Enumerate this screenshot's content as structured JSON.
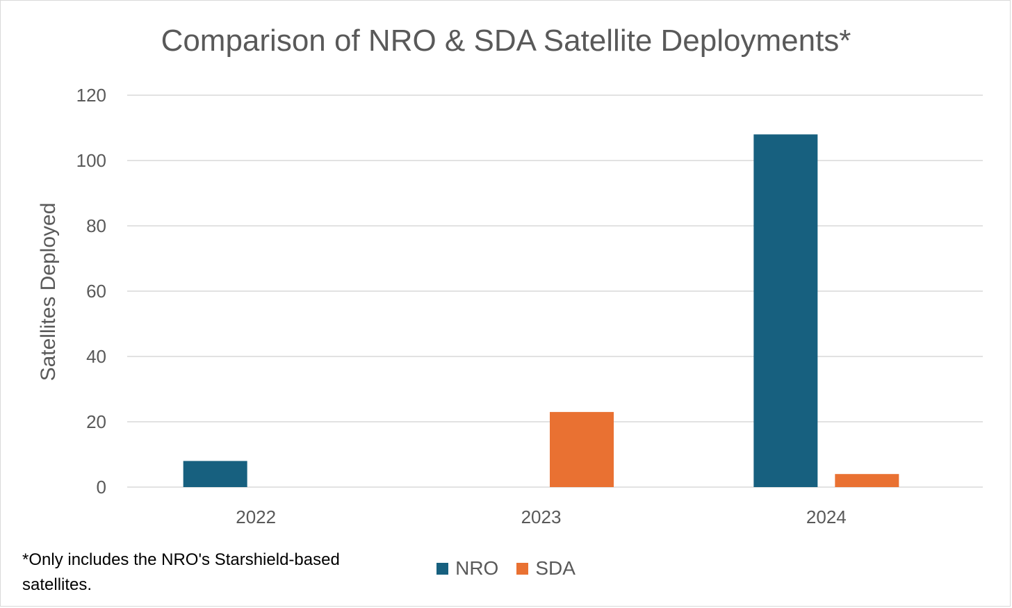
{
  "chart_data": {
    "type": "bar",
    "title": "Comparison of NRO & SDA Satellite Deployments*",
    "ylabel": "Satellites Deployed",
    "xlabel": "",
    "categories": [
      "2022",
      "2023",
      "2024"
    ],
    "series": [
      {
        "name": "NRO",
        "values": [
          8,
          0,
          108
        ],
        "color": "#17607f"
      },
      {
        "name": "SDA",
        "values": [
          0,
          23,
          4
        ],
        "color": "#e97132"
      }
    ],
    "ylim": [
      0,
      120
    ],
    "yticks": [
      0,
      20,
      40,
      60,
      80,
      100,
      120
    ],
    "grid": true,
    "legend_position": "bottom"
  },
  "footnote": "*Only includes the NRO's Starshield-based satellites."
}
